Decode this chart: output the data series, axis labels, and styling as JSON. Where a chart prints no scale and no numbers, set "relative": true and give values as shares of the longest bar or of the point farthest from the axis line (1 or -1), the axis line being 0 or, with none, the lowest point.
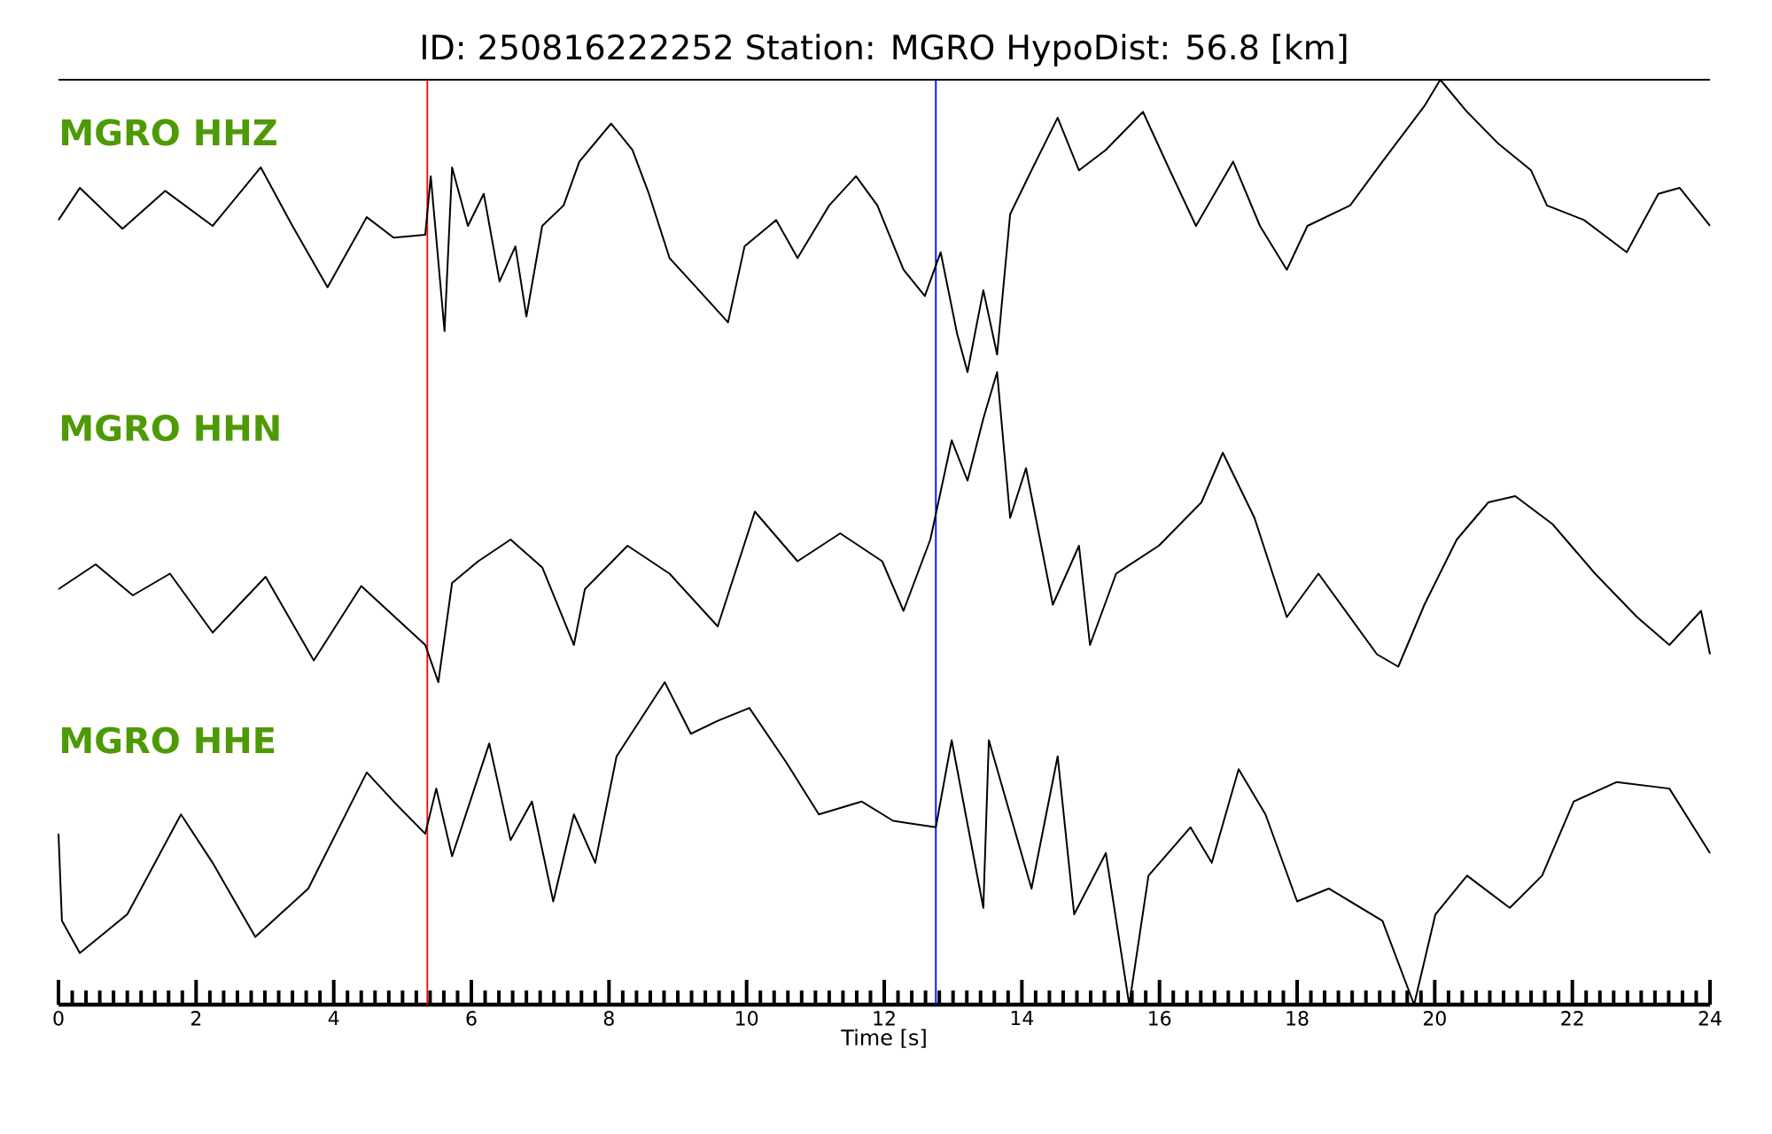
{
  "chart_data": [
    {
      "type": "line",
      "relative": true,
      "title": "ID: 250816222252   Station: MGRO   HypoDist:    56.8 [km]",
      "xlim": [
        0,
        24
      ],
      "tick_labels": false,
      "series": [
        {
          "name": "MGRO HHZ",
          "color": "#000000",
          "x": [
            0.0,
            0.31,
            0.93,
            1.55,
            2.24,
            2.94,
            3.4,
            3.91,
            4.48,
            4.87,
            5.33,
            5.41,
            5.61,
            5.72,
            5.95,
            6.18,
            6.41,
            6.64,
            6.8,
            7.03,
            7.34,
            7.57,
            8.03,
            8.34,
            8.58,
            8.88,
            9.19,
            9.73,
            9.97,
            10.43,
            10.74,
            11.2,
            11.59,
            11.9,
            12.28,
            12.59,
            12.82,
            13.06,
            13.21,
            13.44,
            13.64,
            13.83,
            14.14,
            14.52,
            14.83,
            15.22,
            15.76,
            16.15,
            16.53,
            17.07,
            17.46,
            17.85,
            18.15,
            18.77,
            19.24,
            19.85,
            20.08,
            20.47,
            20.93,
            21.4,
            21.63,
            22.17,
            22.79,
            23.25,
            23.56,
            24.0
          ],
          "values": [
            0.52,
            0.63,
            0.49,
            0.62,
            0.5,
            0.7,
            0.5,
            0.29,
            0.53,
            0.46,
            0.47,
            0.67,
            0.14,
            0.7,
            0.5,
            0.61,
            0.31,
            0.43,
            0.19,
            0.5,
            0.57,
            0.72,
            0.85,
            0.76,
            0.61,
            0.39,
            0.31,
            0.17,
            0.43,
            0.52,
            0.39,
            0.57,
            0.67,
            0.57,
            0.35,
            0.26,
            0.41,
            0.13,
            0.0,
            0.28,
            0.06,
            0.54,
            0.69,
            0.87,
            0.69,
            0.76,
            0.89,
            0.69,
            0.5,
            0.72,
            0.5,
            0.35,
            0.5,
            0.57,
            0.72,
            0.91,
            1.0,
            0.89,
            0.78,
            0.69,
            0.57,
            0.52,
            0.41,
            0.61,
            0.63,
            0.5
          ]
        }
      ],
      "ref_lines": [
        {
          "axis": "x",
          "value": 5.36,
          "color": "#ff0000"
        },
        {
          "axis": "x",
          "value": 12.75,
          "color": "#0000ff"
        }
      ]
    },
    {
      "type": "line",
      "relative": true,
      "xlim": [
        0,
        24
      ],
      "tick_labels": false,
      "series": [
        {
          "name": "MGRO HHN",
          "color": "#000000",
          "x": [
            0.0,
            0.54,
            1.08,
            1.62,
            2.24,
            3.01,
            3.71,
            4.4,
            5.33,
            5.52,
            5.72,
            6.1,
            6.57,
            7.03,
            7.49,
            7.65,
            8.27,
            8.88,
            9.58,
            10.12,
            10.74,
            11.36,
            11.97,
            12.28,
            12.67,
            12.98,
            13.21,
            13.44,
            13.64,
            13.83,
            14.06,
            14.45,
            14.83,
            14.99,
            15.37,
            15.99,
            16.61,
            16.92,
            17.38,
            17.85,
            18.31,
            19.16,
            19.47,
            19.85,
            20.32,
            20.78,
            21.17,
            21.71,
            22.33,
            22.94,
            23.41,
            23.87,
            24.0
          ],
          "values": [
            0.3,
            0.38,
            0.28,
            0.35,
            0.16,
            0.34,
            0.07,
            0.31,
            0.12,
            0.0,
            0.32,
            0.39,
            0.46,
            0.37,
            0.12,
            0.3,
            0.44,
            0.35,
            0.18,
            0.55,
            0.39,
            0.48,
            0.39,
            0.23,
            0.46,
            0.78,
            0.65,
            0.85,
            1.0,
            0.53,
            0.69,
            0.25,
            0.44,
            0.12,
            0.35,
            0.44,
            0.58,
            0.74,
            0.53,
            0.21,
            0.35,
            0.09,
            0.05,
            0.25,
            0.46,
            0.58,
            0.6,
            0.51,
            0.35,
            0.21,
            0.12,
            0.23,
            0.09
          ]
        }
      ],
      "ref_lines": [
        {
          "axis": "x",
          "value": 5.36,
          "color": "#ff0000"
        },
        {
          "axis": "x",
          "value": 12.75,
          "color": "#0000ff"
        }
      ]
    },
    {
      "type": "line",
      "relative": true,
      "xlim": [
        0,
        24
      ],
      "xticks": [
        0,
        2,
        4,
        6,
        8,
        10,
        12,
        14,
        16,
        18,
        20,
        22,
        24
      ],
      "xlabel": "Time [s]",
      "tick_labels": "x",
      "series": [
        {
          "name": "MGRO HHE",
          "color": "#000000",
          "x": [
            0.0,
            0.05,
            0.31,
            1.0,
            1.78,
            2.24,
            2.86,
            3.63,
            4.48,
            4.87,
            5.33,
            5.49,
            5.72,
            6.26,
            6.57,
            6.88,
            7.19,
            7.49,
            7.8,
            8.11,
            8.81,
            9.19,
            9.58,
            10.04,
            10.58,
            11.05,
            11.67,
            12.13,
            12.75,
            12.98,
            13.44,
            13.52,
            14.14,
            14.52,
            14.76,
            15.22,
            15.56,
            15.84,
            16.45,
            16.76,
            17.15,
            17.54,
            18.0,
            18.46,
            19.24,
            19.7,
            20.01,
            20.47,
            21.09,
            21.56,
            22.02,
            22.64,
            23.41,
            24.0
          ],
          "values": [
            0.53,
            0.26,
            0.16,
            0.28,
            0.59,
            0.44,
            0.21,
            0.36,
            0.72,
            0.63,
            0.53,
            0.67,
            0.46,
            0.81,
            0.51,
            0.63,
            0.32,
            0.59,
            0.44,
            0.77,
            1.0,
            0.84,
            0.88,
            0.92,
            0.75,
            0.59,
            0.63,
            0.57,
            0.55,
            0.82,
            0.3,
            0.82,
            0.36,
            0.77,
            0.28,
            0.47,
            0.0,
            0.4,
            0.55,
            0.44,
            0.73,
            0.59,
            0.32,
            0.36,
            0.26,
            0.0,
            0.28,
            0.4,
            0.3,
            0.4,
            0.63,
            0.69,
            0.67,
            0.47
          ]
        }
      ],
      "ref_lines": [
        {
          "axis": "x",
          "value": 5.36,
          "color": "#ff0000"
        },
        {
          "axis": "x",
          "value": 12.75,
          "color": "#0000ff"
        }
      ]
    }
  ]
}
